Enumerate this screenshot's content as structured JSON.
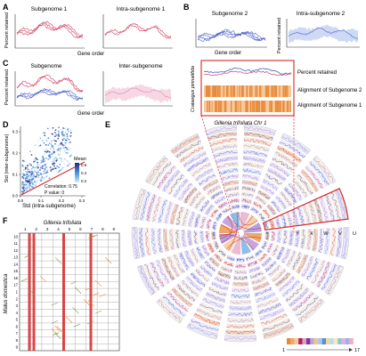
{
  "panels": {
    "A": {
      "letter": "A",
      "left_title": "Subgenome 1",
      "right_title": "Intra-subgenome 1",
      "ylabel": "Percent retained",
      "xlabel": "Gene order"
    },
    "B": {
      "letter": "B",
      "left_title": "Subgenome 2",
      "right_title": "Intra-subgenome 2",
      "ylabel": "Percent retained",
      "xlabel": "Gene order"
    },
    "C": {
      "letter": "C",
      "left_title": "Subgenome",
      "right_title": "Inter-subgenome",
      "ylabel": "Percent retained",
      "xlabel": "Gene order",
      "zoom_ylabel": "Crataegus pinnatifida",
      "legend": [
        "Percent retained",
        "Alignment of Subgenome 2",
        "Alignment of Subgenome 1"
      ]
    },
    "D": {
      "letter": "D",
      "xlabel": "Std (intra-subgenome)",
      "ylabel": "Std (inter-subgenome)",
      "x_ticks": [
        "0.0",
        "0.1",
        "0.2",
        "0.3"
      ],
      "y_ticks": [
        "0.0",
        "0.1",
        "0.2",
        "0.3"
      ],
      "legend_title": "Mean",
      "legend_ticks": [
        "0.6",
        "0.4",
        "0.2"
      ],
      "correlation_text": "Correlation: 0.75",
      "pvalue_text": "P value:  0"
    },
    "E": {
      "letter": "E",
      "title": "Gillenia trifoliata Chr 1",
      "sector_labels": [
        "Y",
        "X",
        "W",
        "V",
        "U"
      ],
      "scale_min": "1",
      "scale_max": "17"
    },
    "F": {
      "letter": "F",
      "title": "Gillenia trifoliata",
      "ylabel": "Malus domestica",
      "x_ticks": [
        "1",
        "2",
        "3",
        "4",
        "5",
        "6",
        "7",
        "8",
        "9"
      ],
      "y_ticks": [
        "10",
        "11",
        "12",
        "13",
        "14",
        "15",
        "16",
        "17",
        "1",
        "2",
        "3",
        "4",
        "5",
        "6",
        "7",
        "8",
        "9"
      ]
    }
  },
  "colors": {
    "subgenome1": "#d23a5a",
    "subgenome2": "#4a5fc8",
    "intra2_fill": "#b9c9f2",
    "inter_fill": "#f2c6d8",
    "highlight": "#d62828",
    "orange": "#e88a3a"
  }
}
